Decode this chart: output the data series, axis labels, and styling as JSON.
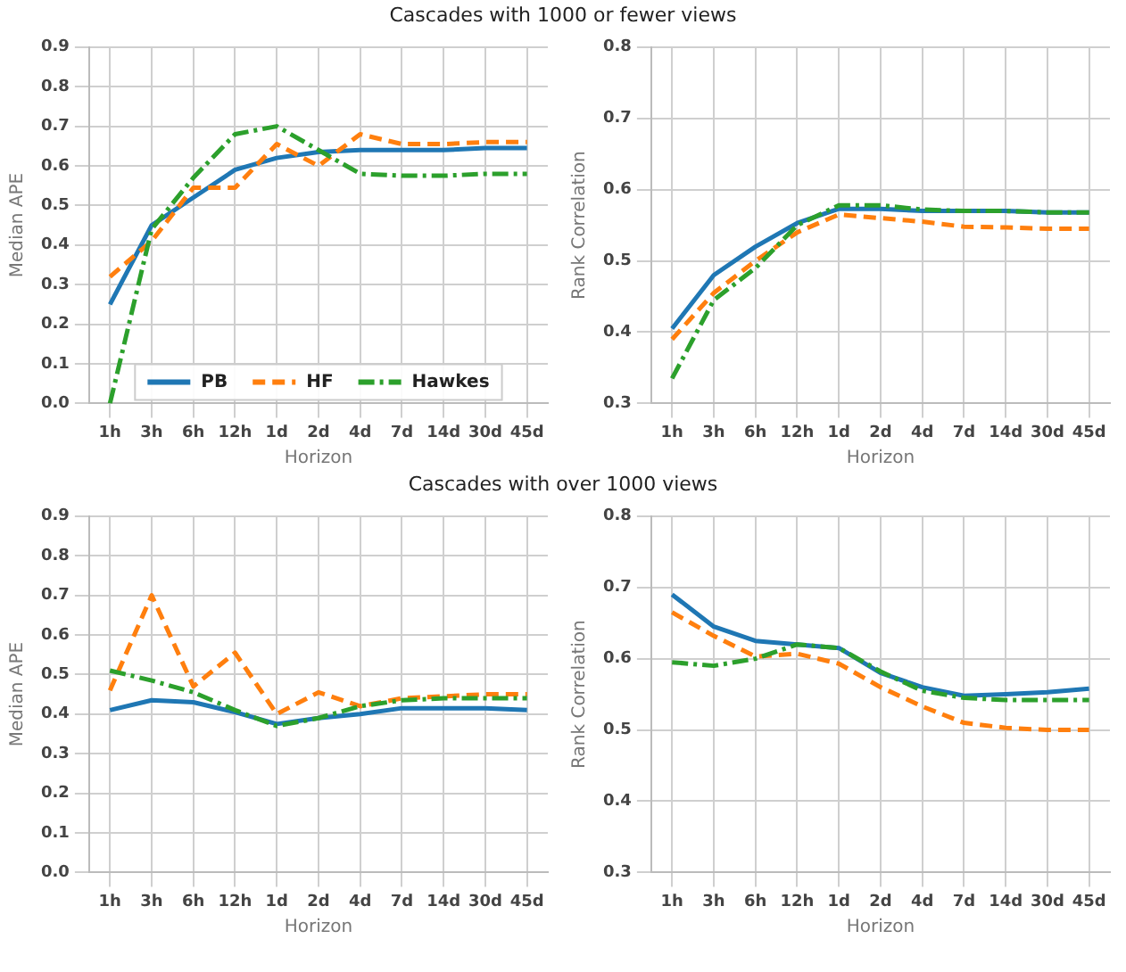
{
  "chart_data": [
    {
      "type": "line",
      "title": "Cascades with 1000 or fewer views",
      "xlabel": "Horizon",
      "ylabel": "Median APE",
      "categories": [
        "1h",
        "3h",
        "6h",
        "12h",
        "1d",
        "2d",
        "4d",
        "7d",
        "14d",
        "30d",
        "45d"
      ],
      "ylim": [
        0,
        0.9
      ],
      "yticks": [
        {
          "value": 0,
          "label": "0.0"
        },
        {
          "value": 0.1,
          "label": "0.1"
        },
        {
          "value": 0.2,
          "label": "0.2"
        },
        {
          "value": 0.3,
          "label": "0.3"
        },
        {
          "value": 0.4,
          "label": "0.4"
        },
        {
          "value": 0.5,
          "label": "0.5"
        },
        {
          "value": 0.6,
          "label": "0.6"
        },
        {
          "value": 0.7,
          "label": "0.7"
        },
        {
          "value": 0.8,
          "label": "0.8"
        },
        {
          "value": 0.9,
          "label": "0.9"
        }
      ],
      "grid": true,
      "legend": "bottom",
      "marker": "none",
      "series": [
        {
          "name": "PB",
          "color": "#1f77b4",
          "line_style": "solid",
          "values": [
            0.25,
            0.45,
            0.52,
            0.59,
            0.62,
            0.635,
            0.64,
            0.64,
            0.64,
            0.645,
            0.645
          ]
        },
        {
          "name": "HF",
          "color": "#ff7f0e",
          "line_style": "dashed",
          "values": [
            0.32,
            0.41,
            0.545,
            0.545,
            0.655,
            0.6,
            0.68,
            0.655,
            0.655,
            0.66,
            0.66
          ]
        },
        {
          "name": "Hawkes",
          "color": "#2ca02c",
          "line_style": "dashdot",
          "values": [
            0,
            0.44,
            0.57,
            0.68,
            0.7,
            0.64,
            0.58,
            0.575,
            0.575,
            0.58,
            0.58
          ]
        }
      ]
    },
    {
      "type": "line",
      "xlabel": "Horizon",
      "ylabel": "Rank Correlation",
      "categories": [
        "1h",
        "3h",
        "6h",
        "12h",
        "1d",
        "2d",
        "4d",
        "7d",
        "14d",
        "30d",
        "45d"
      ],
      "ylim": [
        0.3,
        0.8
      ],
      "yticks": [
        0.3,
        0.4,
        0.5,
        0.6,
        0.7,
        0.8
      ],
      "grid": true,
      "marker": "none",
      "series": [
        {
          "color": "#1f77b4",
          "line_style": "solid",
          "values": [
            0.405,
            0.48,
            0.52,
            0.553,
            0.573,
            0.573,
            0.57,
            0.57,
            0.57,
            0.568,
            0.568
          ]
        },
        {
          "color": "#ff7f0e",
          "line_style": "dashed",
          "values": [
            0.39,
            0.455,
            0.5,
            0.54,
            0.565,
            0.56,
            0.555,
            0.548,
            0.547,
            0.545,
            0.545
          ]
        },
        {
          "color": "#2ca02c",
          "line_style": "dashdot",
          "values": [
            0.335,
            0.445,
            0.49,
            0.55,
            0.578,
            0.578,
            0.572,
            0.57,
            0.57,
            0.568,
            0.568
          ]
        }
      ]
    },
    {
      "type": "line",
      "title": "Cascades with over 1000 views",
      "xlabel": "Horizon",
      "ylabel": "Median APE",
      "categories": [
        "1h",
        "3h",
        "6h",
        "12h",
        "1d",
        "2d",
        "4d",
        "7d",
        "14d",
        "30d",
        "45d"
      ],
      "ylim": [
        0,
        0.9
      ],
      "yticks": [
        {
          "value": 0,
          "label": "0.0"
        },
        {
          "value": 0.1,
          "label": "0.1"
        },
        {
          "value": 0.2,
          "label": "0.2"
        },
        {
          "value": 0.3,
          "label": "0.3"
        },
        {
          "value": 0.4,
          "label": "0.4"
        },
        {
          "value": 0.5,
          "label": "0.5"
        },
        {
          "value": 0.6,
          "label": "0.6"
        },
        {
          "value": 0.7,
          "label": "0.7"
        },
        {
          "value": 0.8,
          "label": "0.8"
        },
        {
          "value": 0.9,
          "label": "0.9"
        }
      ],
      "grid": true,
      "marker": "none",
      "series": [
        {
          "color": "#1f77b4",
          "line_style": "solid",
          "values": [
            0.41,
            0.435,
            0.43,
            0.405,
            0.375,
            0.39,
            0.4,
            0.415,
            0.415,
            0.415,
            0.41
          ]
        },
        {
          "color": "#ff7f0e",
          "line_style": "dashed",
          "values": [
            0.46,
            0.7,
            0.47,
            0.555,
            0.4,
            0.455,
            0.42,
            0.44,
            0.445,
            0.45,
            0.45
          ]
        },
        {
          "color": "#2ca02c",
          "line_style": "dashdot",
          "values": [
            0.51,
            0.485,
            0.455,
            0.41,
            0.37,
            0.39,
            0.42,
            0.435,
            0.44,
            0.44,
            0.44
          ]
        }
      ]
    },
    {
      "type": "line",
      "xlabel": "Horizon",
      "ylabel": "Rank Correlation",
      "categories": [
        "1h",
        "3h",
        "6h",
        "12h",
        "1d",
        "2d",
        "4d",
        "7d",
        "14d",
        "30d",
        "45d"
      ],
      "ylim": [
        0.3,
        0.8
      ],
      "yticks": [
        0.3,
        0.4,
        0.5,
        0.6,
        0.7,
        0.8
      ],
      "grid": true,
      "marker": "none",
      "series": [
        {
          "color": "#1f77b4",
          "line_style": "solid",
          "values": [
            0.69,
            0.645,
            0.625,
            0.62,
            0.615,
            0.58,
            0.56,
            0.548,
            0.55,
            0.553,
            0.558
          ]
        },
        {
          "color": "#ff7f0e",
          "line_style": "dashed",
          "values": [
            0.665,
            0.632,
            0.603,
            0.607,
            0.593,
            0.56,
            0.533,
            0.51,
            0.503,
            0.5,
            0.5
          ]
        },
        {
          "color": "#2ca02c",
          "line_style": "dashdot",
          "values": [
            0.595,
            0.59,
            0.6,
            0.62,
            0.615,
            0.582,
            0.555,
            0.545,
            0.542,
            0.542,
            0.542
          ]
        }
      ]
    }
  ]
}
